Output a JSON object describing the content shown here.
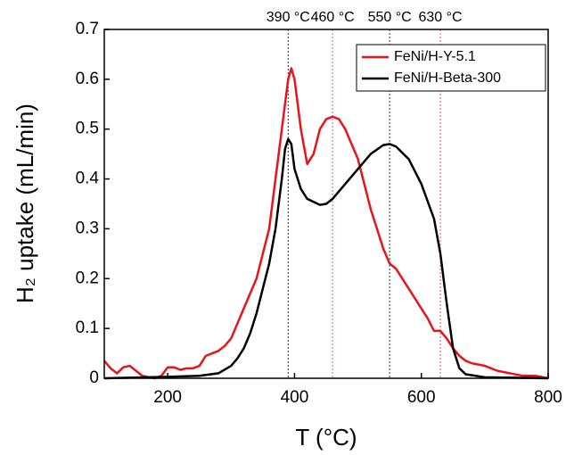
{
  "chart_data": {
    "type": "line",
    "xlabel": "T (°C)",
    "ylabel": "H₂ uptake (mL/min)",
    "xlim": [
      100,
      800
    ],
    "xticks": [
      200,
      400,
      600,
      800
    ],
    "ylim": [
      0,
      0.7
    ],
    "yticks": [
      0,
      0.1,
      0.2,
      0.3,
      0.4,
      0.5,
      0.6,
      0.7
    ],
    "legend": "upper right",
    "annotations": [
      {
        "x": 390,
        "label": "390 °C",
        "color": "#333333"
      },
      {
        "x": 460,
        "label": "460 °C",
        "color": "#e06060"
      },
      {
        "x": 550,
        "label": "550 °C",
        "color": "#333333"
      },
      {
        "x": 630,
        "label": "630 °C",
        "color": "#e06060"
      }
    ],
    "series": [
      {
        "name": "FeNi/H-Y-5.1",
        "color": "#e8141b",
        "x": [
          100,
          110,
          120,
          130,
          140,
          150,
          160,
          170,
          180,
          190,
          200,
          210,
          220,
          230,
          240,
          250,
          260,
          270,
          280,
          290,
          300,
          310,
          320,
          330,
          340,
          350,
          360,
          370,
          380,
          390,
          395,
          400,
          410,
          420,
          430,
          440,
          450,
          460,
          470,
          480,
          490,
          500,
          510,
          520,
          530,
          540,
          550,
          560,
          570,
          580,
          590,
          600,
          610,
          620,
          630,
          640,
          650,
          660,
          670,
          680,
          700,
          720,
          740,
          760,
          780,
          800
        ],
        "values": [
          0.035,
          0.02,
          0.01,
          0.022,
          0.025,
          0.015,
          0.005,
          0.002,
          0,
          0.005,
          0.022,
          0.022,
          0.017,
          0.02,
          0.02,
          0.025,
          0.045,
          0.05,
          0.055,
          0.065,
          0.08,
          0.11,
          0.14,
          0.17,
          0.2,
          0.25,
          0.3,
          0.4,
          0.5,
          0.6,
          0.622,
          0.6,
          0.5,
          0.43,
          0.45,
          0.5,
          0.52,
          0.525,
          0.52,
          0.5,
          0.47,
          0.44,
          0.39,
          0.34,
          0.3,
          0.26,
          0.23,
          0.22,
          0.2,
          0.18,
          0.16,
          0.14,
          0.12,
          0.095,
          0.095,
          0.08,
          0.06,
          0.045,
          0.035,
          0.03,
          0.025,
          0.015,
          0.01,
          0.005,
          0.005,
          0
        ]
      },
      {
        "name": "FeNi/H-Beta-300",
        "color": "#000000",
        "x": [
          100,
          200,
          250,
          280,
          300,
          310,
          320,
          330,
          340,
          350,
          360,
          370,
          380,
          385,
          390,
          395,
          400,
          410,
          420,
          440,
          450,
          460,
          480,
          500,
          520,
          540,
          550,
          560,
          580,
          600,
          620,
          630,
          640,
          650,
          660,
          670,
          700,
          800
        ],
        "values": [
          0,
          0.003,
          0.005,
          0.01,
          0.025,
          0.04,
          0.06,
          0.09,
          0.13,
          0.18,
          0.23,
          0.3,
          0.4,
          0.46,
          0.48,
          0.47,
          0.42,
          0.38,
          0.36,
          0.348,
          0.35,
          0.36,
          0.39,
          0.42,
          0.45,
          0.468,
          0.47,
          0.465,
          0.44,
          0.39,
          0.32,
          0.25,
          0.15,
          0.06,
          0.02,
          0.008,
          0.002,
          0
        ]
      }
    ]
  }
}
